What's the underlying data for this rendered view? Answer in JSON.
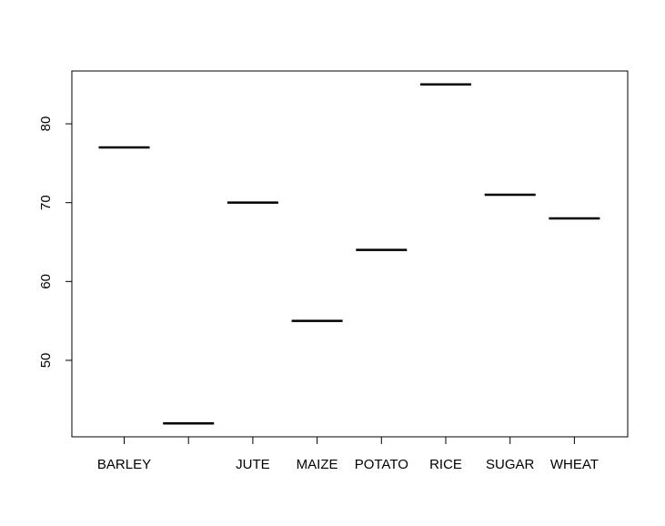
{
  "chart_data": {
    "type": "bar",
    "categories": [
      "BARLEY",
      "",
      "JUTE",
      "MAIZE",
      "POTATO",
      "RICE",
      "SUGAR",
      "WHEAT"
    ],
    "values": [
      77,
      42,
      70,
      55,
      64,
      85,
      71,
      68
    ],
    "ylim": [
      40.3,
      86.7
    ],
    "yticks": [
      50,
      60,
      70,
      80
    ],
    "xlabel": "",
    "ylabel": "",
    "title": "",
    "grid": false,
    "legend": "none"
  }
}
